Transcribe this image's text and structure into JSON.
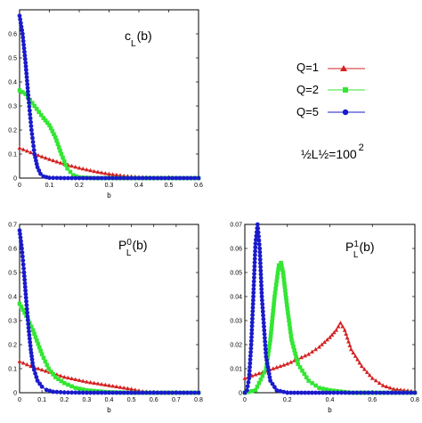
{
  "legend": {
    "entries": [
      {
        "label": "Q=1",
        "color": "#d42020",
        "marker": "triangle"
      },
      {
        "label": "Q=2",
        "color": "#33e633",
        "marker": "square"
      },
      {
        "label": "Q=5",
        "color": "#1a1acc",
        "marker": "circle"
      }
    ],
    "param_prefix": "½L½=100",
    "param_exponent": "2"
  },
  "chart_data": [
    {
      "type": "line",
      "title_main": "c",
      "title_sub": "L",
      "title_sup": "",
      "title_arg": "(b)",
      "xlabel": "b",
      "ylabel": "",
      "xlim": [
        0,
        0.6
      ],
      "ylim": [
        0,
        0.7
      ],
      "xticks": [
        "0",
        "0.1",
        "0.2",
        "0.3",
        "0.4",
        "0.5",
        "0.6"
      ],
      "yticks": [
        "0",
        "0.1",
        "0.2",
        "0.3",
        "0.4",
        "0.5",
        "0.6"
      ],
      "series": [
        {
          "name": "Q=1",
          "x": [
            0,
            0.05,
            0.1,
            0.15,
            0.2,
            0.25,
            0.3,
            0.35,
            0.4,
            0.45,
            0.5,
            0.55,
            0.6
          ],
          "y": [
            0.125,
            0.1,
            0.078,
            0.058,
            0.042,
            0.028,
            0.017,
            0.009,
            0.004,
            0.002,
            0.001,
            0.0,
            0.0
          ]
        },
        {
          "name": "Q=2",
          "x": [
            0,
            0.02,
            0.05,
            0.08,
            0.1,
            0.12,
            0.14,
            0.16,
            0.18,
            0.2,
            0.25,
            0.3,
            0.4,
            0.5,
            0.6
          ],
          "y": [
            0.365,
            0.35,
            0.3,
            0.25,
            0.22,
            0.17,
            0.1,
            0.04,
            0.012,
            0.003,
            0.0,
            0.0,
            0.0,
            0.0,
            0.0
          ]
        },
        {
          "name": "Q=5",
          "x": [
            0,
            0.01,
            0.02,
            0.03,
            0.04,
            0.05,
            0.06,
            0.07,
            0.08,
            0.1,
            0.15,
            0.2,
            0.3,
            0.4,
            0.5,
            0.6
          ],
          "y": [
            0.675,
            0.6,
            0.48,
            0.33,
            0.2,
            0.1,
            0.045,
            0.018,
            0.007,
            0.001,
            0.0,
            0.0,
            0.0,
            0.0,
            0.0,
            0.0
          ]
        }
      ]
    },
    {
      "type": "line",
      "title_main": "P",
      "title_sub": "L",
      "title_sup": "0",
      "title_arg": "(b)",
      "xlabel": "b",
      "ylabel": "",
      "xlim": [
        0,
        0.8
      ],
      "ylim": [
        0,
        0.7
      ],
      "xticks": [
        "0",
        "0.1",
        "0.2",
        "0.3",
        "0.4",
        "0.5",
        "0.6",
        "0.7",
        "0.8"
      ],
      "yticks": [
        "0",
        "0.1",
        "0.2",
        "0.3",
        "0.4",
        "0.5",
        "0.6",
        "0.7"
      ],
      "series": [
        {
          "name": "Q=1",
          "x": [
            0,
            0.05,
            0.1,
            0.15,
            0.2,
            0.3,
            0.4,
            0.5,
            0.55,
            0.6,
            0.7,
            0.8
          ],
          "y": [
            0.13,
            0.11,
            0.095,
            0.08,
            0.065,
            0.045,
            0.03,
            0.015,
            0.005,
            0.001,
            0.0,
            0.0
          ]
        },
        {
          "name": "Q=2",
          "x": [
            0,
            0.03,
            0.06,
            0.1,
            0.13,
            0.16,
            0.2,
            0.25,
            0.3,
            0.4,
            0.5,
            0.6,
            0.7,
            0.8
          ],
          "y": [
            0.37,
            0.32,
            0.26,
            0.16,
            0.1,
            0.065,
            0.04,
            0.02,
            0.01,
            0.002,
            0.0,
            0.0,
            0.0,
            0.0
          ]
        },
        {
          "name": "Q=5",
          "x": [
            0,
            0.01,
            0.02,
            0.03,
            0.04,
            0.05,
            0.06,
            0.08,
            0.1,
            0.12,
            0.15,
            0.2,
            0.3,
            0.4,
            0.5,
            0.6,
            0.7,
            0.8
          ],
          "y": [
            0.675,
            0.6,
            0.5,
            0.38,
            0.27,
            0.18,
            0.11,
            0.05,
            0.025,
            0.012,
            0.004,
            0.001,
            0.0,
            0.0,
            0.0,
            0.0,
            0.0,
            0.0
          ]
        }
      ]
    },
    {
      "type": "line",
      "title_main": "P",
      "title_sub": "L",
      "title_sup": "1",
      "title_arg": "(b)",
      "xlabel": "b",
      "ylabel": "",
      "xlim": [
        0,
        0.8
      ],
      "ylim": [
        0,
        0.07
      ],
      "xticks": [
        "0",
        "0.2",
        "0.4",
        "0.6",
        "0.8"
      ],
      "yticks": [
        "0",
        "0.01",
        "0.02",
        "0.03",
        "0.04",
        "0.05",
        "0.06",
        "0.07"
      ],
      "series": [
        {
          "name": "Q=1",
          "x": [
            0,
            0.1,
            0.2,
            0.3,
            0.35,
            0.4,
            0.43,
            0.45,
            0.47,
            0.5,
            0.55,
            0.6,
            0.65,
            0.7,
            0.8
          ],
          "y": [
            0.006,
            0.009,
            0.012,
            0.016,
            0.019,
            0.023,
            0.026,
            0.029,
            0.026,
            0.018,
            0.011,
            0.006,
            0.003,
            0.0015,
            0.0005
          ]
        },
        {
          "name": "Q=2",
          "x": [
            0,
            0.05,
            0.1,
            0.12,
            0.14,
            0.16,
            0.17,
            0.18,
            0.2,
            0.22,
            0.25,
            0.3,
            0.35,
            0.4,
            0.5,
            0.6,
            0.8
          ],
          "y": [
            0.0,
            0.001,
            0.01,
            0.022,
            0.04,
            0.053,
            0.054,
            0.05,
            0.035,
            0.022,
            0.012,
            0.005,
            0.002,
            0.001,
            0.0,
            0.0,
            0.0
          ]
        },
        {
          "name": "Q=5",
          "x": [
            0,
            0.01,
            0.02,
            0.03,
            0.04,
            0.05,
            0.06,
            0.07,
            0.08,
            0.1,
            0.12,
            0.15,
            0.2,
            0.3,
            0.4,
            0.6,
            0.8
          ],
          "y": [
            0.0,
            0.001,
            0.006,
            0.02,
            0.04,
            0.062,
            0.07,
            0.06,
            0.04,
            0.015,
            0.005,
            0.001,
            0.0,
            0.0,
            0.0,
            0.0,
            0.0
          ]
        }
      ]
    }
  ]
}
